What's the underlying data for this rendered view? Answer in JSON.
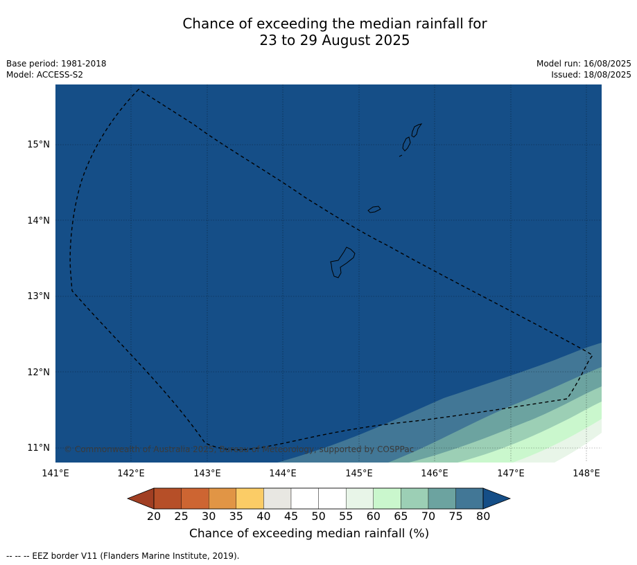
{
  "title": {
    "line1": "Chance of exceeding the median rainfall for",
    "line2": "23 to 29 August 2025"
  },
  "meta": {
    "base_period": "Base period: 1981-2018",
    "model": "Model: ACCESS-S2",
    "model_run": "Model run: 16/08/2025",
    "issued": "Issued: 18/08/2025"
  },
  "map": {
    "extent": {
      "lon": [
        141,
        148.2
      ],
      "lat": [
        10.8,
        15.8
      ]
    },
    "lon_ticks": [
      "141°E",
      "142°E",
      "143°E",
      "144°E",
      "145°E",
      "146°E",
      "147°E",
      "148°E"
    ],
    "lat_ticks": [
      "15°N",
      "14°N",
      "13°N",
      "12°N",
      "11°N"
    ],
    "background_color": "#154e87",
    "copyright": "© Commonwealth of Australia 2025, Bureau of Meteorology, supported by COSPPac"
  },
  "colorbar": {
    "ticks": [
      "20",
      "25",
      "30",
      "35",
      "40",
      "45",
      "50",
      "55",
      "60",
      "65",
      "70",
      "75",
      "80"
    ],
    "colors": [
      "#a13f23",
      "#b64f28",
      "#cd6532",
      "#e19545",
      "#fbcc66",
      "#e8e7e2",
      "#ffffff",
      "#ffffff",
      "#e8f5e8",
      "#caf7cd",
      "#9ccfb5",
      "#6ca3a0",
      "#427796",
      "#154e87"
    ],
    "label": "Chance of exceeding median rainfall (%)"
  },
  "footer": {
    "eez_note": "--  --  -- EEZ border V11 (Flanders Marine Institute, 2019)."
  }
}
